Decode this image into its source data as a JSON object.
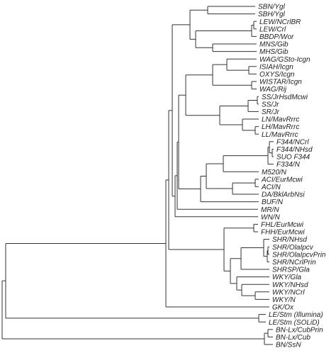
{
  "dendrogram": {
    "line_color": "#333333",
    "label_color": "#222222",
    "leaves": [
      {
        "id": "l0",
        "label": "SBN/Ygl"
      },
      {
        "id": "l1",
        "label": "SBH/Ygl"
      },
      {
        "id": "l2",
        "label": "LEW/NCrlBR"
      },
      {
        "id": "l3",
        "label": "LEW/Crl"
      },
      {
        "id": "l4",
        "label": "BBDP/Wor"
      },
      {
        "id": "l5",
        "label": "MNS/Gib"
      },
      {
        "id": "l6",
        "label": "MHS/Gib"
      },
      {
        "id": "l7",
        "label": "WAG/GSto-Icgn"
      },
      {
        "id": "l8",
        "label": "ISIAH/Icgn"
      },
      {
        "id": "l9",
        "label": "OXYS/Icgn"
      },
      {
        "id": "l10",
        "label": "WISTAR/Icgn"
      },
      {
        "id": "l11",
        "label": "WAG/Rij"
      },
      {
        "id": "l12",
        "label": "SS/JrHsdMcwi"
      },
      {
        "id": "l13",
        "label": "SS/Jr"
      },
      {
        "id": "l14",
        "label": "SR/Jr"
      },
      {
        "id": "l15",
        "label": "LN/MavRrrc"
      },
      {
        "id": "l16",
        "label": "LH/MavRrrc"
      },
      {
        "id": "l17",
        "label": "LL/MavRrrc"
      },
      {
        "id": "l18",
        "label": "F344/NCrl"
      },
      {
        "id": "l19",
        "label": "F344/NHsd"
      },
      {
        "id": "l20",
        "label": "SUO F344"
      },
      {
        "id": "l21",
        "label": "F334/N"
      },
      {
        "id": "l22",
        "label": "M520/N"
      },
      {
        "id": "l23",
        "label": "ACI/EurMcwi"
      },
      {
        "id": "l24",
        "label": "ACI/N"
      },
      {
        "id": "l25",
        "label": "DA/BklArbNsi"
      },
      {
        "id": "l26",
        "label": "BUF/N"
      },
      {
        "id": "l27",
        "label": "MR/N"
      },
      {
        "id": "l28",
        "label": "WN/N"
      },
      {
        "id": "l29",
        "label": "FHL/EurMcwi"
      },
      {
        "id": "l30",
        "label": "FHH/EurMcwi"
      },
      {
        "id": "l31",
        "label": "SHR/NHsd"
      },
      {
        "id": "l32",
        "label": "SHR/OlaIpcv"
      },
      {
        "id": "l33",
        "label": "SHR/OlaIpcvPrin"
      },
      {
        "id": "l34",
        "label": "SHR/NCrlPrin"
      },
      {
        "id": "l35",
        "label": "SHRSP/Gla"
      },
      {
        "id": "l36",
        "label": "WKY/Gla"
      },
      {
        "id": "l37",
        "label": "WKY/NHsd"
      },
      {
        "id": "l38",
        "label": "WKY/NCrl"
      },
      {
        "id": "l39",
        "label": "WKY/N"
      },
      {
        "id": "l40",
        "label": "GK/Ox"
      },
      {
        "id": "l41",
        "label": "LE/Stm (Illumina)"
      },
      {
        "id": "l42",
        "label": "LE/Stm (SOLiD)"
      },
      {
        "id": "l43",
        "label": "BN-Lx/CubPrin"
      },
      {
        "id": "l44",
        "label": "BN-Lx/Cub"
      },
      {
        "id": "l45",
        "label": "BN/SsN"
      }
    ],
    "clusters": [
      {
        "id": "c_sb",
        "children": [
          "l0",
          "l1"
        ]
      },
      {
        "id": "c_lew",
        "children": [
          "l2",
          "l3"
        ]
      },
      {
        "id": "c_lewb",
        "children": [
          "c_lew",
          "l4"
        ]
      },
      {
        "id": "c_mg",
        "children": [
          "l5",
          "l6"
        ]
      },
      {
        "id": "c_a",
        "children": [
          "c_lewb",
          "c_mg"
        ]
      },
      {
        "id": "c_top",
        "children": [
          "c_sb",
          "c_a"
        ]
      },
      {
        "id": "c_io",
        "children": [
          "l8",
          "l9"
        ]
      },
      {
        "id": "c_w1",
        "children": [
          "l7",
          "c_io"
        ]
      },
      {
        "id": "c_wr",
        "children": [
          "l10",
          "l11"
        ]
      },
      {
        "id": "c_wag",
        "children": [
          "c_w1",
          "c_wr"
        ]
      },
      {
        "id": "c_ss2",
        "children": [
          "l12",
          "l13"
        ]
      },
      {
        "id": "c_ss",
        "children": [
          "c_ss2",
          "l14"
        ]
      },
      {
        "id": "c_ll",
        "children": [
          "l16",
          "l17"
        ]
      },
      {
        "id": "c_lm",
        "children": [
          "l15",
          "c_ll"
        ]
      },
      {
        "id": "c_mid",
        "children": [
          "c_ss",
          "c_lm"
        ]
      },
      {
        "id": "c_wsm",
        "children": [
          "c_wag",
          "c_mid"
        ]
      },
      {
        "id": "c_f3",
        "children": [
          "l19",
          "l20"
        ]
      },
      {
        "id": "c_f2",
        "children": [
          "l18",
          "c_f3"
        ]
      },
      {
        "id": "c_f1",
        "children": [
          "c_f2",
          "l21"
        ]
      },
      {
        "id": "c_fm",
        "children": [
          "c_f1",
          "l22"
        ]
      },
      {
        "id": "c_aci",
        "children": [
          "l23",
          "l24"
        ]
      },
      {
        "id": "c_ad",
        "children": [
          "c_aci",
          "l25"
        ]
      },
      {
        "id": "c_fa",
        "children": [
          "c_fm",
          "c_ad"
        ]
      },
      {
        "id": "c_fab",
        "children": [
          "c_fa",
          "l26"
        ]
      },
      {
        "id": "c_big",
        "children": [
          "c_wsm",
          "c_fab"
        ]
      },
      {
        "id": "c_mr",
        "children": [
          "c_big",
          "l27"
        ]
      },
      {
        "id": "c_wn",
        "children": [
          "c_mr",
          "l28"
        ]
      },
      {
        "id": "c_up",
        "children": [
          "c_top",
          "c_wn"
        ]
      },
      {
        "id": "c_fh",
        "children": [
          "l29",
          "l30"
        ]
      },
      {
        "id": "c_s3",
        "children": [
          "l32",
          "l33"
        ]
      },
      {
        "id": "c_s2",
        "children": [
          "c_s3",
          "l34"
        ]
      },
      {
        "id": "c_s1",
        "children": [
          "l31",
          "c_s2"
        ]
      },
      {
        "id": "c_shr",
        "children": [
          "c_s1",
          "l35"
        ]
      },
      {
        "id": "c_wk3",
        "children": [
          "l38",
          "l39"
        ]
      },
      {
        "id": "c_wk2",
        "children": [
          "l37",
          "c_wk3"
        ]
      },
      {
        "id": "c_wk",
        "children": [
          "l36",
          "c_wk2"
        ]
      },
      {
        "id": "c_sw",
        "children": [
          "c_shr",
          "c_wk"
        ]
      },
      {
        "id": "c_fsw",
        "children": [
          "c_fh",
          "c_sw"
        ]
      },
      {
        "id": "c_upper",
        "children": [
          "c_up",
          "c_fsw"
        ]
      },
      {
        "id": "c_gk",
        "children": [
          "c_upper",
          "l40"
        ]
      },
      {
        "id": "c_le",
        "children": [
          "l41",
          "l42"
        ]
      },
      {
        "id": "c_gle",
        "children": [
          "c_gk",
          "c_le"
        ]
      },
      {
        "id": "c_bn2",
        "children": [
          "l43",
          "l44"
        ]
      },
      {
        "id": "c_bn",
        "children": [
          "c_bn2",
          "l45"
        ]
      },
      {
        "id": "c_root",
        "children": [
          "c_gle",
          "c_bn"
        ]
      }
    ]
  }
}
